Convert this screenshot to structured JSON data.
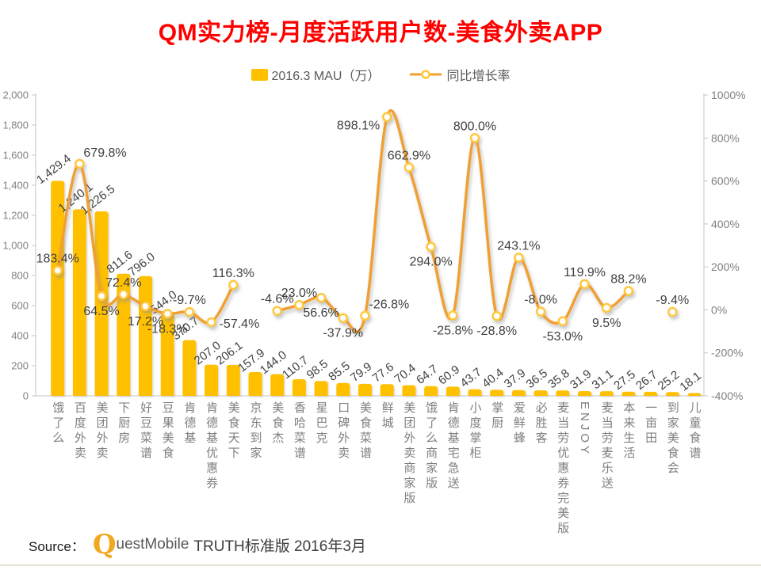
{
  "title": "QM实力榜-月度活跃用户数-美食外卖APP",
  "legend": [
    {
      "label": "2016.3 MAU（万）",
      "type": "bar"
    },
    {
      "label": "同比增长率",
      "type": "line"
    }
  ],
  "source": {
    "prefix": "Source：",
    "logo_q": "Q",
    "logo_rest": "uestMobile",
    "suffix": "TRUTH标准版 2016年3月"
  },
  "chart_data": {
    "type": "combo bar+line, dual axis",
    "title": "QM实力榜-月度活跃用户数-美食外卖APP",
    "categories": [
      "饿了么",
      "百度外卖",
      "美团外卖",
      "下厨房",
      "好豆菜谱",
      "豆果美食",
      "肯德基",
      "肯德基优惠券",
      "美食天下",
      "京东到家",
      "美食杰",
      "香哈菜谱",
      "星巴克",
      "口碑外卖",
      "美食菜谱",
      "鲜城",
      "美团外卖商家版",
      "饿了么商家版",
      "肯德基宅急送",
      "小度掌柜",
      "掌厨",
      "爱鲜蜂",
      "必胜客",
      "麦当劳优惠券完美版",
      "ENJOY",
      "麦当劳麦乐送",
      "本来生活",
      "一亩田",
      "到家美食会",
      "儿童食谱"
    ],
    "series": [
      {
        "name": "2016.3 MAU（万）",
        "type": "bar",
        "axis": "left",
        "values": [
          1429.4,
          1240.1,
          1226.5,
          811.6,
          796.0,
          544.0,
          370.7,
          207.0,
          206.1,
          157.9,
          144.0,
          110.7,
          98.5,
          85.5,
          79.9,
          77.6,
          70.4,
          64.7,
          60.9,
          43.7,
          40.4,
          37.9,
          36.5,
          35.8,
          31.9,
          31.1,
          27.5,
          26.7,
          25.2,
          18.1
        ]
      },
      {
        "name": "同比增长率",
        "type": "line",
        "axis": "right",
        "unit": "%",
        "values": [
          183.4,
          679.8,
          64.5,
          72.4,
          17.2,
          -18.3,
          -9.7,
          -57.4,
          116.3,
          null,
          -4.6,
          23.0,
          56.6,
          -37.9,
          -26.8,
          898.1,
          662.9,
          294.0,
          -25.8,
          800.0,
          -28.8,
          243.1,
          -8.0,
          -53.0,
          119.9,
          9.5,
          88.2,
          null,
          -9.4,
          null
        ]
      }
    ],
    "left_axis": {
      "min": 0,
      "max": 2000,
      "step": 200,
      "tick_labels": [
        "0",
        "200",
        "400",
        "600",
        "800",
        "1,000",
        "1,200",
        "1,400",
        "1,600",
        "1,800",
        "2,000"
      ]
    },
    "right_axis": {
      "min": -400,
      "max": 1000,
      "step": 200,
      "tick_labels": [
        "-400%",
        "-200%",
        "0%",
        "200%",
        "400%",
        "600%",
        "800%",
        "1000%"
      ]
    },
    "grid": "off",
    "legend_position": "top",
    "growth_label_side": [
      "a",
      "ar",
      "b",
      "a",
      "b",
      "b",
      "a",
      "r",
      "a",
      null,
      "a",
      "a",
      "b",
      "b",
      "ar",
      "l",
      "a",
      "b",
      "b",
      "a",
      "b",
      "a",
      "a",
      "b",
      "a",
      "b",
      "a",
      null,
      "a",
      null
    ],
    "colors": {
      "bar": "#FFC000",
      "line": "#F0A030",
      "marker_ring": "#FFC83D",
      "data_label": "#404040",
      "axis_text": "#808080",
      "axis_line": "#C6C6C6",
      "title": "#FF0000",
      "category_text": "#7f7f7f"
    }
  }
}
